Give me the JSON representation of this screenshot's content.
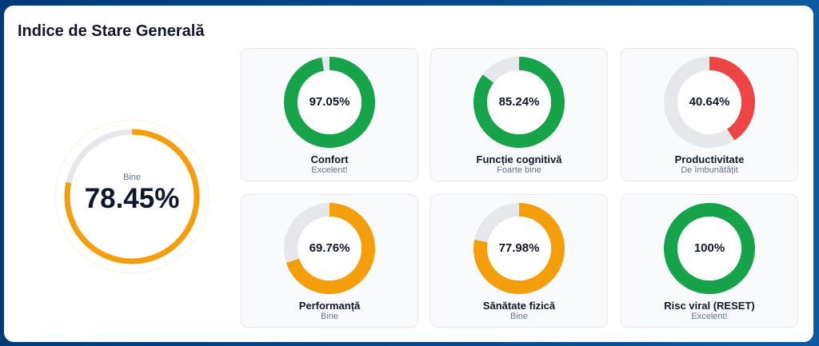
{
  "title": "Indice de Stare Generală",
  "overall": {
    "label": "Bine",
    "value_text": "78.45%",
    "value": 78.45,
    "color": "#f59e0b"
  },
  "metrics": [
    {
      "name": "Confort",
      "value_text": "97.05%",
      "value": 97.05,
      "status": "Excelent!",
      "color": "#16a34a"
    },
    {
      "name": "Funcție cognitivă",
      "value_text": "85.24%",
      "value": 85.24,
      "status": "Foarte bine",
      "color": "#16a34a"
    },
    {
      "name": "Productivitate",
      "value_text": "40.64%",
      "value": 40.64,
      "status": "De îmbunătățit",
      "color": "#ef4444"
    },
    {
      "name": "Performanță",
      "value_text": "69.76%",
      "value": 69.76,
      "status": "Bine",
      "color": "#f59e0b"
    },
    {
      "name": "Sănătate fizică",
      "value_text": "77.98%",
      "value": 77.98,
      "status": "Bine",
      "color": "#f59e0b"
    },
    {
      "name": "Risc viral (RESET)",
      "value_text": "100%",
      "value": 100,
      "status": "Excelent!",
      "color": "#16a34a"
    }
  ],
  "track_color": "#e5e7eb"
}
